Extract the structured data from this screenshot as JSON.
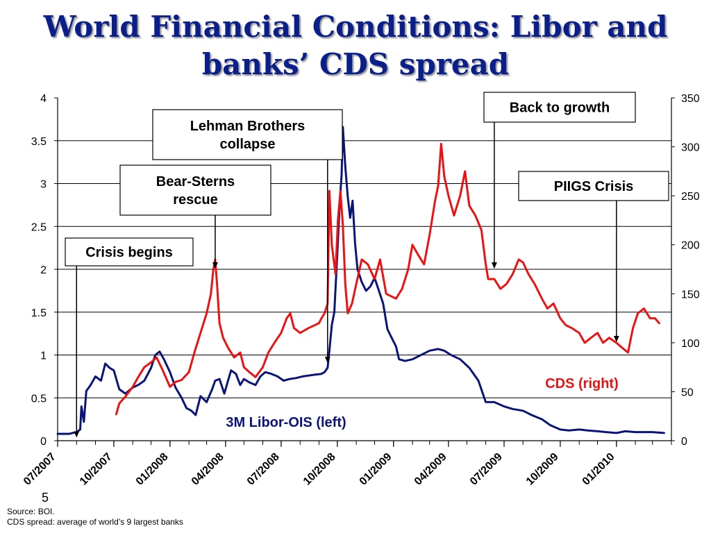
{
  "title": {
    "line1": "World Financial Conditions: Libor and",
    "line2": "banks’ CDS spread"
  },
  "slide_number": "5",
  "footnote": {
    "source": "Source: BOI.",
    "note": "CDS spread: average of world’s 9 largest banks"
  },
  "colors": {
    "libor": "#0a137a",
    "cds": "#ee1111",
    "title": "#0b1f8a"
  },
  "chart_data": {
    "type": "line",
    "title": "",
    "grid": true,
    "x_tick_labels": [
      "07/2007",
      "10/2007",
      "01/2008",
      "04/2008",
      "07/2008",
      "10/2008",
      "01/2009",
      "04/2009",
      "07/2009",
      "10/2009",
      "01/2010"
    ],
    "xlim": [
      "07/2007",
      "04/2010"
    ],
    "y_left": {
      "lim": [
        0,
        4
      ],
      "ticks": [
        "0",
        "0.5",
        "1",
        "1.5",
        "2",
        "2.5",
        "3",
        "3.5",
        "4"
      ]
    },
    "y_right": {
      "lim": [
        0,
        350
      ],
      "ticks": [
        "0",
        "50",
        "100",
        "150",
        "200",
        "250",
        "300",
        "350"
      ]
    },
    "series": [
      {
        "name": "3M Libor-OIS (left)",
        "axis": "left",
        "points": [
          [
            "2007-07-01",
            0.08
          ],
          [
            "2007-07-20",
            0.08
          ],
          [
            "2007-08-01",
            0.1
          ],
          [
            "2007-08-07",
            0.13
          ],
          [
            "2007-08-09",
            0.4
          ],
          [
            "2007-08-13",
            0.22
          ],
          [
            "2007-08-17",
            0.58
          ],
          [
            "2007-08-24",
            0.65
          ],
          [
            "2007-09-01",
            0.75
          ],
          [
            "2007-09-10",
            0.7
          ],
          [
            "2007-09-17",
            0.9
          ],
          [
            "2007-09-24",
            0.85
          ],
          [
            "2007-10-01",
            0.82
          ],
          [
            "2007-10-10",
            0.6
          ],
          [
            "2007-10-20",
            0.55
          ],
          [
            "2007-11-01",
            0.62
          ],
          [
            "2007-11-10",
            0.65
          ],
          [
            "2007-11-20",
            0.7
          ],
          [
            "2007-12-01",
            0.85
          ],
          [
            "2007-12-08",
            1.0
          ],
          [
            "2007-12-15",
            1.04
          ],
          [
            "2007-12-22",
            0.95
          ],
          [
            "2008-01-01",
            0.8
          ],
          [
            "2008-01-10",
            0.62
          ],
          [
            "2008-01-20",
            0.5
          ],
          [
            "2008-01-28",
            0.38
          ],
          [
            "2008-02-05",
            0.35
          ],
          [
            "2008-02-12",
            0.3
          ],
          [
            "2008-02-20",
            0.52
          ],
          [
            "2008-03-01",
            0.45
          ],
          [
            "2008-03-10",
            0.6
          ],
          [
            "2008-03-15",
            0.7
          ],
          [
            "2008-03-22",
            0.72
          ],
          [
            "2008-03-30",
            0.55
          ],
          [
            "2008-04-05",
            0.7
          ],
          [
            "2008-04-10",
            0.82
          ],
          [
            "2008-04-18",
            0.78
          ],
          [
            "2008-04-25",
            0.65
          ],
          [
            "2008-05-01",
            0.72
          ],
          [
            "2008-05-10",
            0.68
          ],
          [
            "2008-05-20",
            0.65
          ],
          [
            "2008-05-28",
            0.75
          ],
          [
            "2008-06-05",
            0.8
          ],
          [
            "2008-06-15",
            0.78
          ],
          [
            "2008-06-25",
            0.75
          ],
          [
            "2008-07-05",
            0.7
          ],
          [
            "2008-07-15",
            0.72
          ],
          [
            "2008-07-25",
            0.73
          ],
          [
            "2008-08-05",
            0.75
          ],
          [
            "2008-08-15",
            0.76
          ],
          [
            "2008-08-25",
            0.77
          ],
          [
            "2008-09-05",
            0.78
          ],
          [
            "2008-09-10",
            0.8
          ],
          [
            "2008-09-15",
            0.85
          ],
          [
            "2008-09-18",
            1.05
          ],
          [
            "2008-09-22",
            1.35
          ],
          [
            "2008-09-26",
            1.5
          ],
          [
            "2008-10-01",
            2.2
          ],
          [
            "2008-10-05",
            2.8
          ],
          [
            "2008-10-08",
            3.1
          ],
          [
            "2008-10-10",
            3.66
          ],
          [
            "2008-10-14",
            3.2
          ],
          [
            "2008-10-18",
            2.85
          ],
          [
            "2008-10-22",
            2.6
          ],
          [
            "2008-10-26",
            2.8
          ],
          [
            "2008-10-30",
            2.3
          ],
          [
            "2008-11-03",
            2.0
          ],
          [
            "2008-11-10",
            1.85
          ],
          [
            "2008-11-17",
            1.75
          ],
          [
            "2008-11-24",
            1.8
          ],
          [
            "2008-12-01",
            1.9
          ],
          [
            "2008-12-08",
            1.75
          ],
          [
            "2008-12-15",
            1.6
          ],
          [
            "2008-12-22",
            1.3
          ],
          [
            "2008-12-29",
            1.2
          ],
          [
            "2009-01-05",
            1.1
          ],
          [
            "2009-01-10",
            0.95
          ],
          [
            "2009-01-20",
            0.93
          ],
          [
            "2009-02-01",
            0.95
          ],
          [
            "2009-02-15",
            1.0
          ],
          [
            "2009-03-01",
            1.05
          ],
          [
            "2009-03-15",
            1.07
          ],
          [
            "2009-03-25",
            1.05
          ],
          [
            "2009-04-05",
            1.0
          ],
          [
            "2009-04-20",
            0.95
          ],
          [
            "2009-05-05",
            0.85
          ],
          [
            "2009-05-20",
            0.7
          ],
          [
            "2009-06-01",
            0.45
          ],
          [
            "2009-06-15",
            0.45
          ],
          [
            "2009-07-01",
            0.4
          ],
          [
            "2009-07-15",
            0.37
          ],
          [
            "2009-08-01",
            0.35
          ],
          [
            "2009-08-15",
            0.3
          ],
          [
            "2009-09-01",
            0.25
          ],
          [
            "2009-09-15",
            0.18
          ],
          [
            "2009-10-01",
            0.13
          ],
          [
            "2009-10-15",
            0.12
          ],
          [
            "2009-11-01",
            0.13
          ],
          [
            "2009-11-15",
            0.12
          ],
          [
            "2009-12-01",
            0.11
          ],
          [
            "2009-12-15",
            0.1
          ],
          [
            "2010-01-01",
            0.09
          ],
          [
            "2010-01-15",
            0.11
          ],
          [
            "2010-02-01",
            0.1
          ],
          [
            "2010-02-15",
            0.1
          ],
          [
            "2010-03-01",
            0.1
          ],
          [
            "2010-03-20",
            0.09
          ]
        ]
      },
      {
        "name": "CDS (right)",
        "axis": "right",
        "points": [
          [
            "2007-10-05",
            27
          ],
          [
            "2007-10-10",
            38
          ],
          [
            "2007-10-20",
            45
          ],
          [
            "2007-11-01",
            55
          ],
          [
            "2007-11-10",
            65
          ],
          [
            "2007-11-20",
            75
          ],
          [
            "2007-12-01",
            80
          ],
          [
            "2007-12-10",
            85
          ],
          [
            "2007-12-20",
            72
          ],
          [
            "2008-01-01",
            55
          ],
          [
            "2008-01-10",
            60
          ],
          [
            "2008-01-20",
            62
          ],
          [
            "2008-02-01",
            70
          ],
          [
            "2008-02-10",
            90
          ],
          [
            "2008-02-20",
            110
          ],
          [
            "2008-03-01",
            130
          ],
          [
            "2008-03-08",
            150
          ],
          [
            "2008-03-12",
            175
          ],
          [
            "2008-03-15",
            185
          ],
          [
            "2008-03-18",
            160
          ],
          [
            "2008-03-22",
            120
          ],
          [
            "2008-03-28",
            105
          ],
          [
            "2008-04-05",
            95
          ],
          [
            "2008-04-15",
            85
          ],
          [
            "2008-04-25",
            90
          ],
          [
            "2008-05-01",
            75
          ],
          [
            "2008-05-10",
            70
          ],
          [
            "2008-05-20",
            65
          ],
          [
            "2008-06-01",
            75
          ],
          [
            "2008-06-10",
            90
          ],
          [
            "2008-06-20",
            100
          ],
          [
            "2008-07-01",
            110
          ],
          [
            "2008-07-10",
            125
          ],
          [
            "2008-07-16",
            130
          ],
          [
            "2008-07-22",
            115
          ],
          [
            "2008-08-01",
            110
          ],
          [
            "2008-08-15",
            115
          ],
          [
            "2008-09-01",
            120
          ],
          [
            "2008-09-05",
            125
          ],
          [
            "2008-09-10",
            130
          ],
          [
            "2008-09-15",
            140
          ],
          [
            "2008-09-18",
            255
          ],
          [
            "2008-09-22",
            200
          ],
          [
            "2008-09-28",
            170
          ],
          [
            "2008-10-02",
            225
          ],
          [
            "2008-10-06",
            255
          ],
          [
            "2008-10-10",
            220
          ],
          [
            "2008-10-14",
            160
          ],
          [
            "2008-10-18",
            130
          ],
          [
            "2008-10-25",
            140
          ],
          [
            "2008-11-01",
            160
          ],
          [
            "2008-11-10",
            185
          ],
          [
            "2008-11-20",
            180
          ],
          [
            "2008-12-01",
            165
          ],
          [
            "2008-12-10",
            185
          ],
          [
            "2008-12-20",
            150
          ],
          [
            "2009-01-05",
            145
          ],
          [
            "2009-01-15",
            155
          ],
          [
            "2009-01-25",
            175
          ],
          [
            "2009-02-01",
            200
          ],
          [
            "2009-02-10",
            190
          ],
          [
            "2009-02-20",
            180
          ],
          [
            "2009-03-01",
            210
          ],
          [
            "2009-03-10",
            245
          ],
          [
            "2009-03-15",
            260
          ],
          [
            "2009-03-20",
            303
          ],
          [
            "2009-03-25",
            270
          ],
          [
            "2009-04-01",
            250
          ],
          [
            "2009-04-10",
            230
          ],
          [
            "2009-04-20",
            250
          ],
          [
            "2009-04-28",
            275
          ],
          [
            "2009-05-05",
            240
          ],
          [
            "2009-05-15",
            230
          ],
          [
            "2009-05-25",
            215
          ],
          [
            "2009-06-01",
            180
          ],
          [
            "2009-06-05",
            165
          ],
          [
            "2009-06-15",
            165
          ],
          [
            "2009-06-25",
            155
          ],
          [
            "2009-07-05",
            160
          ],
          [
            "2009-07-15",
            170
          ],
          [
            "2009-07-25",
            185
          ],
          [
            "2009-08-01",
            182
          ],
          [
            "2009-08-10",
            170
          ],
          [
            "2009-08-20",
            160
          ],
          [
            "2009-09-01",
            145
          ],
          [
            "2009-09-10",
            135
          ],
          [
            "2009-09-20",
            140
          ],
          [
            "2009-10-01",
            125
          ],
          [
            "2009-10-10",
            118
          ],
          [
            "2009-10-20",
            115
          ],
          [
            "2009-11-01",
            110
          ],
          [
            "2009-11-10",
            100
          ],
          [
            "2009-11-20",
            105
          ],
          [
            "2009-12-01",
            110
          ],
          [
            "2009-12-10",
            100
          ],
          [
            "2009-12-20",
            105
          ],
          [
            "2010-01-01",
            100
          ],
          [
            "2010-01-10",
            95
          ],
          [
            "2010-01-20",
            90
          ],
          [
            "2010-01-28",
            115
          ],
          [
            "2010-02-05",
            130
          ],
          [
            "2010-02-15",
            135
          ],
          [
            "2010-02-25",
            125
          ],
          [
            "2010-03-05",
            125
          ],
          [
            "2010-03-12",
            120
          ]
        ]
      }
    ],
    "annotations": [
      {
        "text": [
          "Crisis begins"
        ],
        "date": "2007-08-01",
        "arrow_to_axis": "left",
        "arrow_to_value": 0.03
      },
      {
        "text": [
          "Bear-Sterns",
          "rescue"
        ],
        "date": "2008-03-15",
        "arrow_to_axis": "right",
        "arrow_to_value": 175
      },
      {
        "text": [
          "Lehman Brothers",
          "collapse"
        ],
        "date": "2008-09-15",
        "arrow_to_axis": "left",
        "arrow_to_value": 0.9
      },
      {
        "text": [
          "Back to growth"
        ],
        "date": "2009-06-15",
        "arrow_to_axis": "right",
        "arrow_to_value": 175
      },
      {
        "text": [
          "PIIGS Crisis"
        ],
        "date": "2010-01-01",
        "arrow_to_axis": "right",
        "arrow_to_value": 100
      }
    ]
  }
}
